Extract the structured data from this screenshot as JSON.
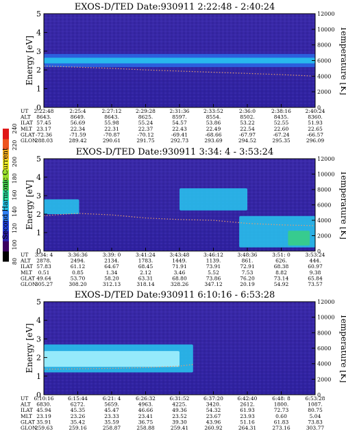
{
  "colorbar": {
    "label": "Second Harmonic Current",
    "ticks": [
      "80",
      "100",
      "120",
      "140",
      "160",
      "180",
      "200",
      "220",
      "240"
    ],
    "colors": [
      "#000000",
      "#3a0060",
      "#2a1fa8",
      "#1f3fd8",
      "#2f7ff0",
      "#27c7e8",
      "#2fe0a0",
      "#47d04f",
      "#9ae02f",
      "#f0f02a",
      "#f5b020",
      "#ee5520",
      "#e01818"
    ]
  },
  "chart_data": [
    {
      "type": "heatmap",
      "title": "EXOS-D/TED    Date:930911  2:22:48 - 2:40:24",
      "ylabel": "Energy [eV]",
      "y2label": "Temperature [K]",
      "ylim": [
        0,
        5
      ],
      "y_ticks": [
        "0",
        "1",
        "2",
        "3",
        "4",
        "5"
      ],
      "y2lim": [
        0,
        12000
      ],
      "y2_ticks": [
        "0",
        "2000",
        "4000",
        "6000",
        "8000",
        "10000",
        "12000"
      ],
      "row_labels": [
        "UT",
        "ALT",
        "ILAT",
        "MLT",
        "GLAT",
        "GLON"
      ],
      "columns": [
        [
          "2:22:48",
          "8643.",
          "57.45",
          "23.17",
          "-72.36",
          "288.03"
        ],
        [
          "2:25:4",
          "8649.",
          "56.69",
          "22.34",
          "-71.59",
          "289.42"
        ],
        [
          "2:27:12",
          "8643.",
          "55.98",
          "22.31",
          "-70.87",
          "290.61"
        ],
        [
          "2:29:28",
          "8625.",
          "55.24",
          "22.37",
          "-70.12",
          "291.75"
        ],
        [
          "2:31:36",
          "8597.",
          "54.57",
          "22.43",
          "-69.41",
          "292.73"
        ],
        [
          "2:33:52",
          "8554.",
          "53.86",
          "22.49",
          "-68.66",
          "293.69"
        ],
        [
          "2:36:0",
          "8502.",
          "53.22",
          "22.54",
          "-67.97",
          "294.52"
        ],
        [
          "2:38:16",
          "8435.",
          "52.55",
          "22.60",
          "-67.24",
          "295.35"
        ],
        [
          "2:40:24",
          "8360.",
          "51.93",
          "22.65",
          "-66.57",
          "296.09"
        ]
      ],
      "bands": [
        {
          "x": [
            0.0,
            1.0
          ],
          "y": [
            2.15,
            2.85
          ],
          "level": "blue"
        },
        {
          "x": [
            0.0,
            1.0
          ],
          "y": [
            2.35,
            2.65
          ],
          "level": "cyan"
        }
      ],
      "temperature_trace": {
        "x": [
          0.0,
          0.125,
          0.25,
          0.375,
          0.5,
          0.625,
          0.75,
          0.875,
          1.0
        ],
        "y": [
          5300,
          5150,
          5000,
          4800,
          4650,
          4500,
          4350,
          4200,
          4000
        ]
      }
    },
    {
      "type": "heatmap",
      "title": "EXOS-D/TED    Date:930911  3:34: 4 - 3:53:24",
      "ylabel": "Energy [eV]",
      "y2label": "Temperature [K]",
      "ylim": [
        0,
        5
      ],
      "y_ticks": [
        "0",
        "1",
        "2",
        "3",
        "4",
        "5"
      ],
      "y2lim": [
        0,
        12000
      ],
      "y2_ticks": [
        "0",
        "2000",
        "4000",
        "6000",
        "8000",
        "10000",
        "12000"
      ],
      "row_labels": [
        "UT",
        "ALT",
        "ILAT",
        "MLT",
        "GLAT",
        "GLON"
      ],
      "columns": [
        [
          "3:34: 4",
          "2878.",
          "57.83",
          "0.51",
          "49.64",
          "305.27"
        ],
        [
          "3:36:36",
          "2494.",
          "61.12",
          "0.85",
          "53.70",
          "308.20"
        ],
        [
          "3:39: 0",
          "2134.",
          "64.67",
          "1.34",
          "58.20",
          "312.13"
        ],
        [
          "3:41:24",
          "1783.",
          "68.45",
          "2.12",
          "63.31",
          "318.14"
        ],
        [
          "3:43:48",
          "1449.",
          "71.91",
          "3.46",
          "68.80",
          "328.26"
        ],
        [
          "3:46:12",
          "1139.",
          "73.91",
          "5.52",
          "73.86",
          "347.12"
        ],
        [
          "3:48:36",
          "861.",
          "72.91",
          "7.53",
          "76.20",
          "20.19"
        ],
        [
          "3:51: 0",
          "626.",
          "68.38",
          "8.82",
          "73.14",
          "54.92"
        ],
        [
          "3:53:24",
          "444.",
          "60.97",
          "9.38",
          "65.84",
          "73.57"
        ]
      ],
      "bands": [
        {
          "x": [
            0.0,
            0.13
          ],
          "y": [
            2.0,
            2.8
          ],
          "level": "cyan"
        },
        {
          "x": [
            0.5,
            0.75
          ],
          "y": [
            2.2,
            3.4
          ],
          "level": "cyan"
        },
        {
          "x": [
            0.72,
            1.0
          ],
          "y": [
            0.2,
            1.9
          ],
          "level": "cyan"
        },
        {
          "x": [
            0.9,
            0.98
          ],
          "y": [
            0.3,
            1.1
          ],
          "level": "green"
        }
      ],
      "temperature_trace": {
        "x": [
          0.0,
          0.125,
          0.25,
          0.375,
          0.5,
          0.625,
          0.75,
          0.875,
          1.0
        ],
        "y": [
          4600,
          4900,
          4700,
          4300,
          4100,
          4000,
          3600,
          3400,
          3300
        ]
      }
    },
    {
      "type": "heatmap",
      "title": "EXOS-D/TED    Date:930911  6:10:16 - 6:53:28",
      "ylabel": "Energy [eV]",
      "y2label": "Temperature [K]",
      "ylim": [
        0,
        5
      ],
      "y_ticks": [
        "0",
        "1",
        "2",
        "3",
        "4",
        "5"
      ],
      "y2lim": [
        0,
        12000
      ],
      "y2_ticks": [
        "0",
        "2000",
        "4000",
        "6000",
        "8000",
        "10000",
        "12000"
      ],
      "row_labels": [
        "UT",
        "ALT",
        "ILAT",
        "MLT",
        "GLAT",
        "GLON"
      ],
      "columns": [
        [
          "6:10:16",
          "6830.",
          "45.94",
          "23.19",
          "35.91",
          "259.63"
        ],
        [
          "6:15:44",
          "6272.",
          "45.35",
          "23.26",
          "35.42",
          "259.16"
        ],
        [
          "6:21: 4",
          "5659.",
          "45.47",
          "23.33",
          "35.59",
          "258.87"
        ],
        [
          "6:26:32",
          "4963.",
          "46.66",
          "23.41",
          "36.75",
          "258.88"
        ],
        [
          "6:31:52",
          "4225.",
          "49.36",
          "23.52",
          "39.30",
          "259.41"
        ],
        [
          "6:37:20",
          "3420.",
          "54.32",
          "23.67",
          "43.96",
          "260.92"
        ],
        [
          "6:42:40",
          "2612.",
          "61.93",
          "23.93",
          "51.16",
          "264.31"
        ],
        [
          "6:48: 8",
          "1800.",
          "72.73",
          "0.60",
          "61.83",
          "273.16"
        ],
        [
          "6:53:28",
          "1087.",
          "80.75",
          "5.04",
          "73.83",
          "303.77"
        ]
      ],
      "bands": [
        {
          "x": [
            0.0,
            0.55
          ],
          "y": [
            1.2,
            2.7
          ],
          "level": "cyan"
        },
        {
          "x": [
            0.0,
            0.5
          ],
          "y": [
            1.5,
            2.35
          ],
          "level": "lightcyan"
        }
      ],
      "temperature_trace": {
        "x": [
          0.0,
          0.125,
          0.25,
          0.375,
          0.5,
          0.55
        ],
        "y": [
          3300,
          3350,
          3400,
          3500,
          3700,
          3900
        ]
      }
    }
  ]
}
